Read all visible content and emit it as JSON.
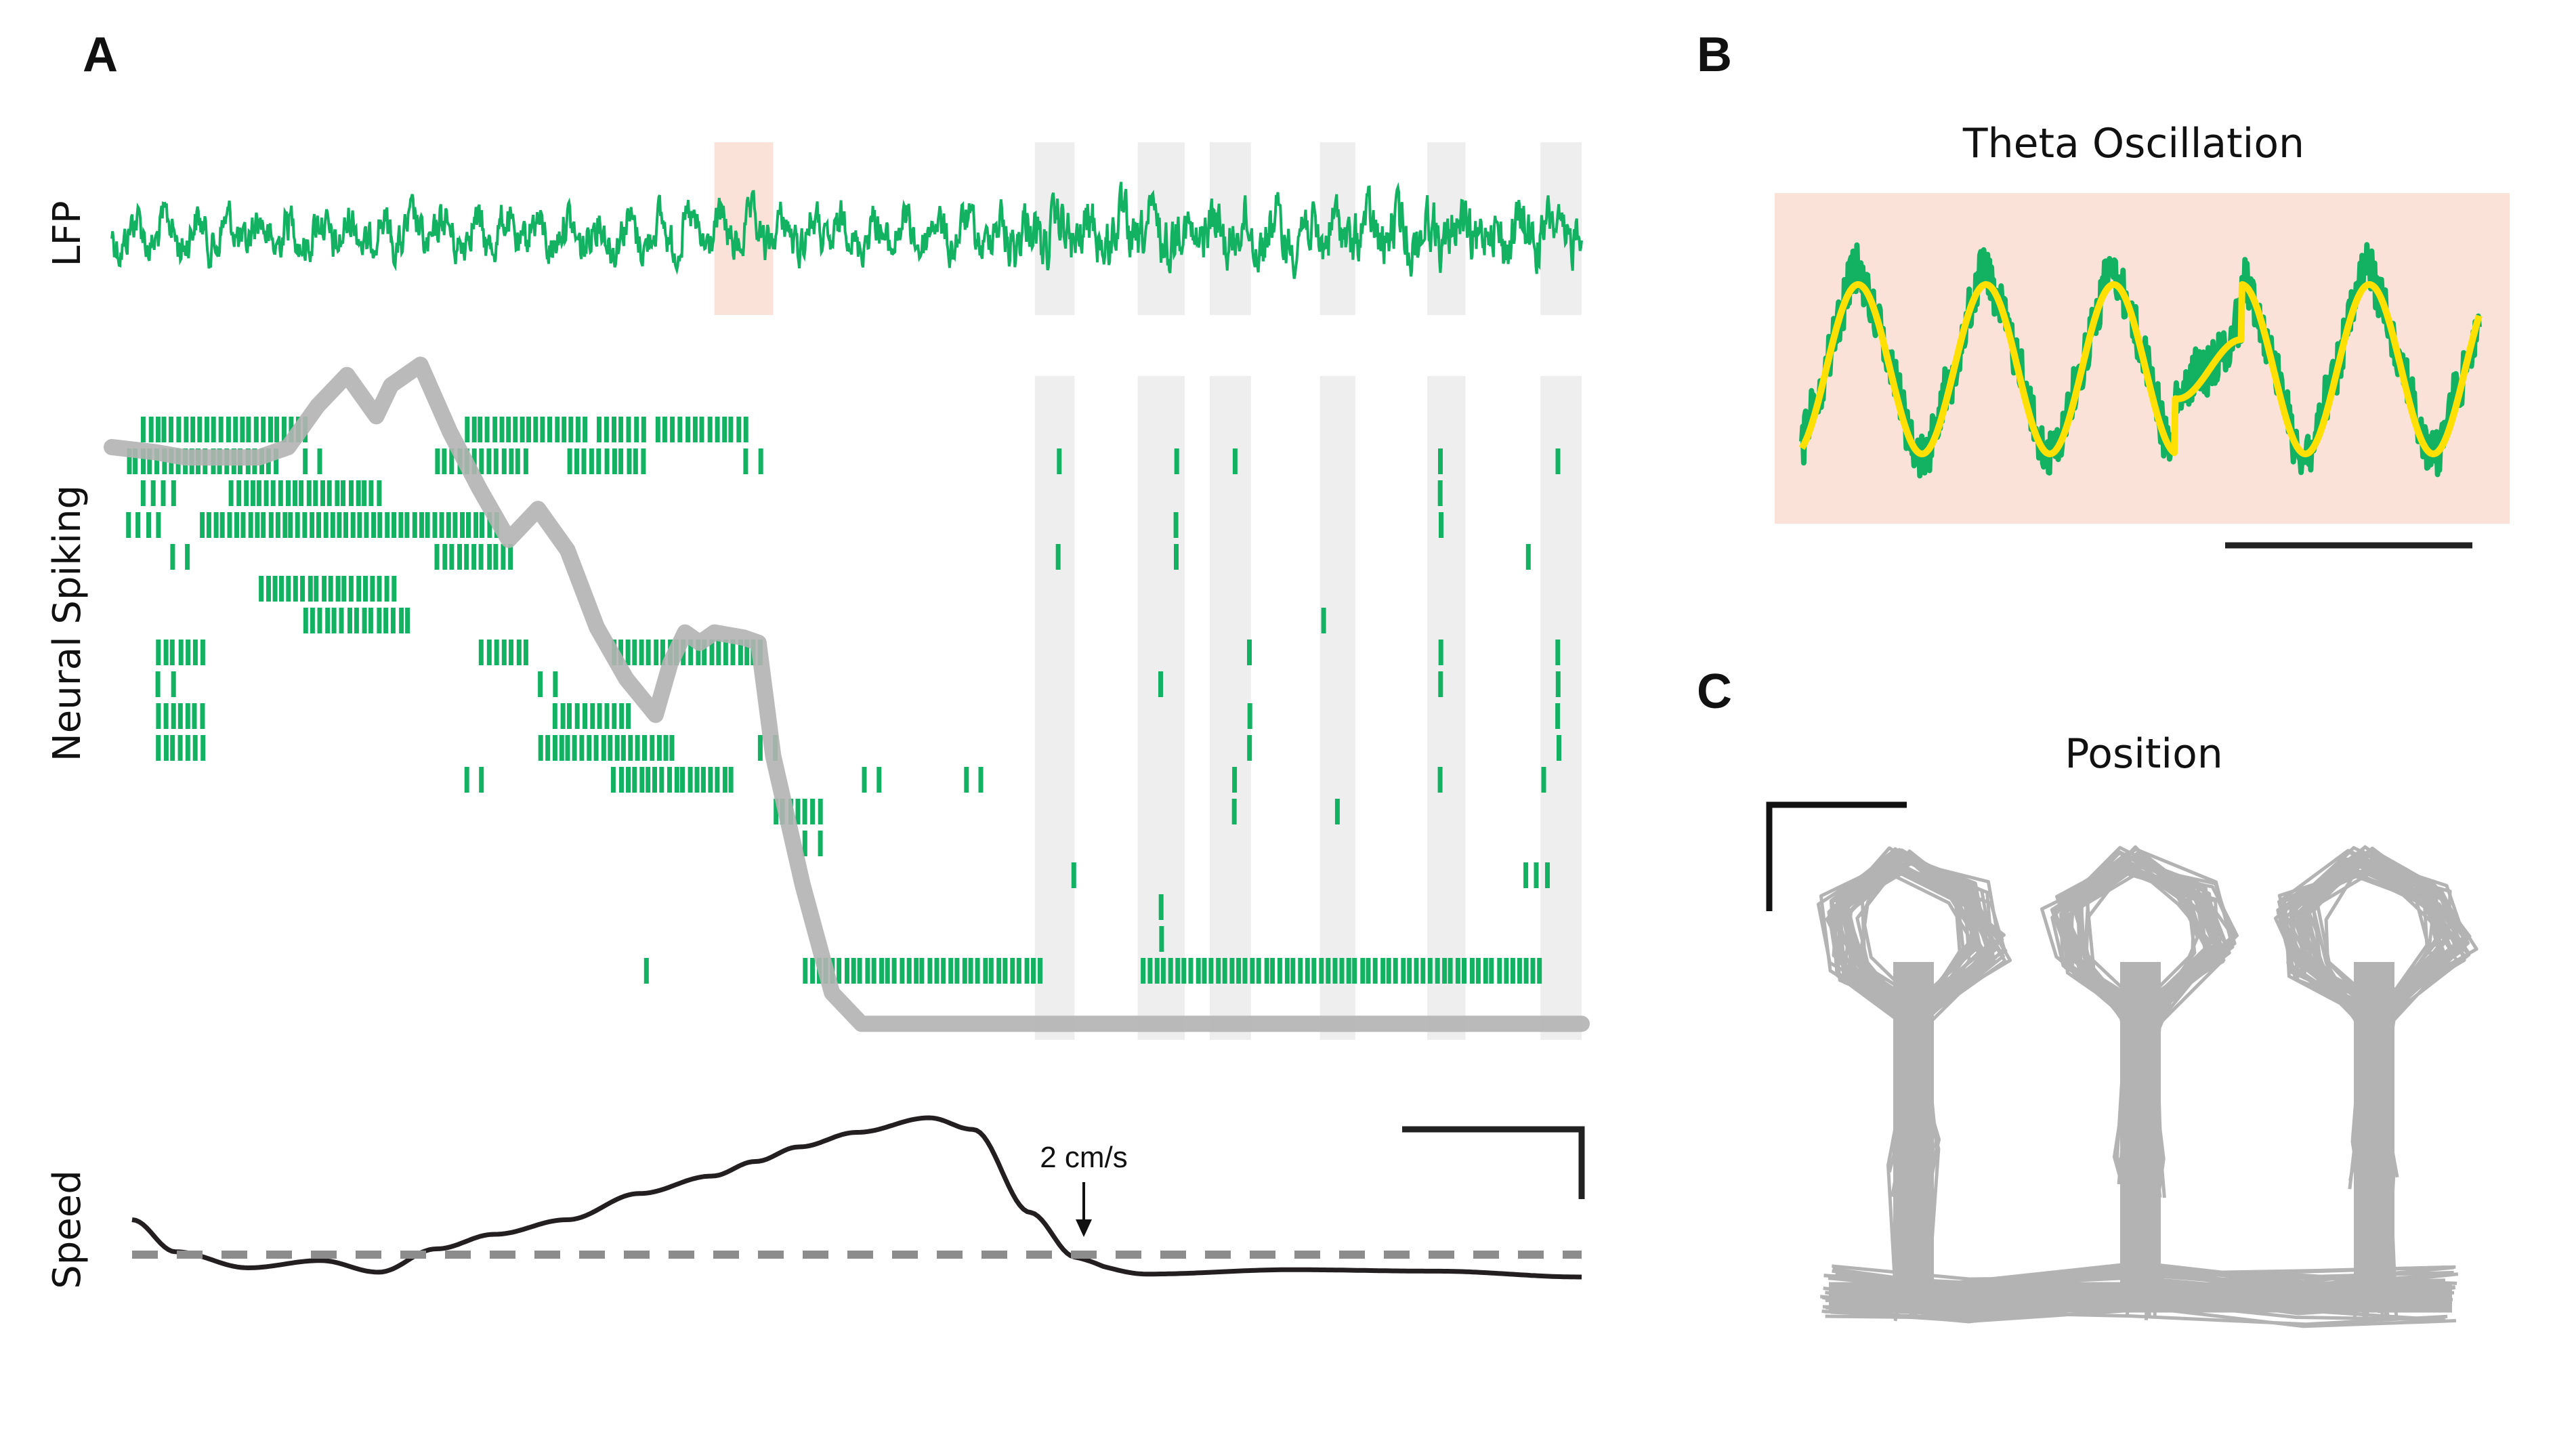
{
  "panels": {
    "a": {
      "letter": "A",
      "lfp_label": "LFP",
      "spiking_label": "Neural Spiking",
      "speed_label": "Speed",
      "threshold_label": "2 cm/s"
    },
    "b": {
      "letter": "B",
      "title": "Theta Oscillation"
    },
    "c": {
      "letter": "C",
      "title": "Position"
    }
  },
  "colors": {
    "lfp": "#12b262",
    "spike": "#12b262",
    "position_trace": "#b3b3b3",
    "theta_fit": "#ffe000",
    "speed": "#231f20",
    "threshold": "#8c8c8c",
    "theta_band": "#fbe2d8",
    "still_band": "#eeeeee"
  },
  "chart_data": [
    {
      "panel": "A",
      "type": "line",
      "xlabel": "",
      "ylabels": [
        "LFP",
        "Neural Spiking",
        "Speed"
      ],
      "time_range": [
        0,
        1
      ],
      "theta_window": [
        0.41,
        0.45
      ],
      "stillness_windows": [
        [
          0.628,
          0.655
        ],
        [
          0.698,
          0.73
        ],
        [
          0.747,
          0.775
        ],
        [
          0.822,
          0.846
        ],
        [
          0.895,
          0.921
        ],
        [
          0.972,
          1.0
        ]
      ],
      "speed_threshold_label": "2 cm/s",
      "speed_series": {
        "t": [
          0.0,
          0.03,
          0.08,
          0.13,
          0.17,
          0.21,
          0.25,
          0.3,
          0.35,
          0.4,
          0.43,
          0.46,
          0.5,
          0.55,
          0.58,
          0.62,
          0.65,
          0.7,
          0.8,
          0.9,
          1.0
        ],
        "v": [
          0.3,
          0.08,
          -0.03,
          0.02,
          -0.06,
          0.1,
          0.2,
          0.3,
          0.48,
          0.6,
          0.7,
          0.8,
          0.9,
          1.0,
          0.92,
          0.35,
          0.1,
          0.02,
          0.05,
          0.04,
          0.0
        ]
      },
      "num_units": 20
    },
    {
      "panel": "B",
      "type": "line",
      "title": "Theta Oscillation",
      "series": [
        {
          "kind": "raw_lfp"
        },
        {
          "kind": "theta_filtered"
        }
      ]
    },
    {
      "panel": "C",
      "type": "line",
      "title": "Position",
      "arms": 3
    }
  ]
}
